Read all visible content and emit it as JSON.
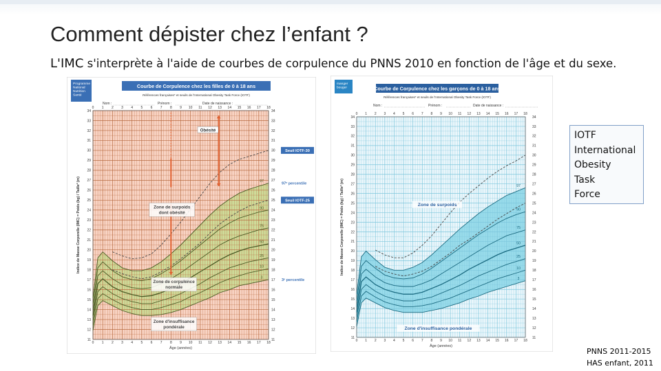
{
  "slide": {
    "title": "Comment dépister chez l’enfant ?",
    "subtitle_lead": "L'IMC",
    "subtitle_rest": " s'interprète à l'aide de courbes de corpulence du PNNS 2010 en fonction de l'âge et du sexe.",
    "iotf_lines": [
      "IOTF",
      "International",
      "Obesity",
      "Task",
      "Force"
    ],
    "sources": [
      "PNNS 2011-2015",
      "HAS enfant, 2011"
    ]
  },
  "charts": {
    "girls": {
      "title": "Courbe de Corpulence chez les filles de 0 à 18 ans",
      "references": "Références françaises* et seuils de l'International Obesity Task Force (IOTF)",
      "logo_lines": [
        "Programme",
        "National",
        "Nutrition",
        "Santé"
      ],
      "name_label": "Nom :",
      "firstname_label": "Prénom :",
      "birthdate_label": "Date de naissance :",
      "y_axis_label": "Indice de Masse Corporelle (IMC) = Poids (kg) / Taille² (m)",
      "x_axis_label": "Âge (années)",
      "annotations": {
        "obesity": "Obésité",
        "iotf30": "Seuil IOTF-30",
        "p97": "97ᵉ percentile",
        "iotf25": "Seuil IOTF-25",
        "overweight": [
          "Zone de surpoids",
          "dont obésité"
        ],
        "normal": [
          "Zone de corpulence",
          "normale"
        ],
        "under": [
          "Zone d'insuffisance",
          "pondérale"
        ],
        "p3": "3ᵉ percentile"
      },
      "percentile_labels": [
        "97",
        "90",
        "75",
        "50",
        "25",
        "10",
        "3"
      ],
      "colors": {
        "background": "#f8d3c3",
        "zone": "#c9dc95",
        "curve": "#4b5b25",
        "accent": "#e06030",
        "label_box": "#3a6fb5"
      }
    },
    "boys": {
      "title": "Courbe de Corpulence chez les garçons de 0 à 18 ans",
      "references": "Références françaises* et seuils de l'International Obesity Task Force (IOTF)",
      "logo_lines": [
        "manger",
        "bouger"
      ],
      "name_label": "Nom :",
      "firstname_label": "Prénom :",
      "birthdate_label": "Date de naissance :",
      "y_axis_label": "Indice de Masse Corporelle (IMC) = Poids (kg) / Taille² (m)",
      "x_axis_label": "Âge (années)",
      "annotations": {
        "overweight": "Zone de surpoids",
        "under": "Zone d'insuffisance pondérale"
      },
      "percentile_labels": [
        "97",
        "90",
        "75",
        "50",
        "25",
        "10",
        "3"
      ],
      "colors": {
        "background": "#eaf6fb",
        "zone": "#8fd8e8",
        "curve": "#1a6a80",
        "accent": "#3a8ec0",
        "label_box": "#2a5f9f"
      }
    },
    "x_ticks": [
      "0",
      "1",
      "2",
      "3",
      "4",
      "5",
      "6",
      "7",
      "8",
      "9",
      "10",
      "11",
      "12",
      "13",
      "14",
      "15",
      "16",
      "17",
      "18"
    ],
    "y_ticks": [
      "34",
      "33",
      "32",
      "31",
      "30",
      "29",
      "28",
      "27",
      "26",
      "25",
      "24",
      "23",
      "22",
      "21",
      "20",
      "19",
      "18",
      "17",
      "16",
      "15",
      "14",
      "13",
      "12",
      "11"
    ]
  },
  "chart_data": [
    {
      "type": "line",
      "title": "Courbe de Corpulence chez les filles de 0 à 18 ans",
      "xlabel": "Âge (années)",
      "ylabel": "Indice de Masse Corporelle (IMC) = Poids (kg) / Taille² (m)",
      "xlim": [
        0,
        18
      ],
      "ylim": [
        11,
        34
      ],
      "x": [
        0,
        0.5,
        1,
        2,
        3,
        4,
        5,
        6,
        7,
        8,
        9,
        10,
        11,
        12,
        13,
        14,
        15,
        16,
        17,
        18
      ],
      "series": [
        {
          "name": "Seuil IOTF-30",
          "values": [
            null,
            null,
            null,
            19.8,
            19.4,
            19.1,
            19.2,
            19.6,
            20.5,
            21.6,
            22.8,
            24.1,
            25.4,
            26.7,
            27.8,
            28.6,
            29.1,
            29.4,
            29.7,
            30
          ]
        },
        {
          "name": "97",
          "values": [
            15.2,
            19.2,
            19.8,
            18.9,
            18.2,
            17.9,
            17.9,
            18.2,
            18.8,
            19.6,
            20.5,
            21.5,
            22.5,
            23.5,
            24.4,
            25.1,
            25.7,
            26.1,
            26.4,
            26.7
          ]
        },
        {
          "name": "Seuil IOTF-25",
          "values": [
            null,
            null,
            null,
            18,
            17.6,
            17.3,
            17.1,
            17.3,
            17.8,
            18.4,
            19.1,
            19.9,
            20.7,
            21.7,
            22.6,
            23.3,
            23.9,
            24.4,
            24.7,
            25
          ]
        },
        {
          "name": "90",
          "values": [
            14.6,
            18.2,
            18.8,
            17.9,
            17.3,
            17,
            16.9,
            17.1,
            17.6,
            18.2,
            18.9,
            19.7,
            20.5,
            21.3,
            22.1,
            22.7,
            23.2,
            23.5,
            23.8,
            24
          ]
        },
        {
          "name": "75",
          "values": [
            14,
            17.4,
            17.9,
            17.1,
            16.5,
            16.2,
            16.1,
            16.2,
            16.6,
            17.1,
            17.7,
            18.4,
            19.1,
            19.8,
            20.5,
            21,
            21.4,
            21.7,
            22,
            22.2
          ]
        },
        {
          "name": "50",
          "values": [
            13.4,
            16.6,
            17.1,
            16.3,
            15.8,
            15.5,
            15.3,
            15.4,
            15.7,
            16.1,
            16.6,
            17.2,
            17.8,
            18.4,
            19,
            19.5,
            19.9,
            20.2,
            20.4,
            20.6
          ]
        },
        {
          "name": "25",
          "values": [
            12.9,
            15.8,
            16.3,
            15.6,
            15.1,
            14.8,
            14.6,
            14.6,
            14.9,
            15.2,
            15.6,
            16.1,
            16.6,
            17.2,
            17.7,
            18.2,
            18.5,
            18.8,
            19,
            19.2
          ]
        },
        {
          "name": "10",
          "values": [
            12.4,
            15.1,
            15.6,
            15,
            14.5,
            14.2,
            14,
            14,
            14.2,
            14.5,
            14.8,
            15.3,
            15.7,
            16.2,
            16.7,
            17.1,
            17.4,
            17.7,
            17.9,
            18.1
          ]
        },
        {
          "name": "3",
          "values": [
            11.9,
            14.4,
            14.9,
            14.4,
            13.9,
            13.6,
            13.4,
            13.4,
            13.5,
            13.7,
            14,
            14.4,
            14.8,
            15.2,
            15.7,
            16,
            16.4,
            16.6,
            16.8,
            17
          ]
        }
      ]
    },
    {
      "type": "line",
      "title": "Courbe de Corpulence chez les garçons de 0 à 18 ans",
      "xlabel": "Âge (années)",
      "ylabel": "Indice de Masse Corporelle (IMC) = Poids (kg) / Taille² (m)",
      "xlim": [
        0,
        18
      ],
      "ylim": [
        11,
        34
      ],
      "x": [
        0,
        0.5,
        1,
        2,
        3,
        4,
        5,
        6,
        7,
        8,
        9,
        10,
        11,
        12,
        13,
        14,
        15,
        16,
        17,
        18
      ],
      "series": [
        {
          "name": "IOTF 30",
          "values": [
            null,
            null,
            null,
            20.1,
            19.6,
            19.3,
            19.3,
            19.8,
            20.6,
            21.6,
            22.8,
            24,
            25.1,
            26,
            26.8,
            27.6,
            28.3,
            28.9,
            29.4,
            30
          ]
        },
        {
          "name": "97",
          "values": [
            15.5,
            19.4,
            20,
            19.1,
            18.3,
            18,
            18,
            18.3,
            18.8,
            19.6,
            20.5,
            21.4,
            22.3,
            23.1,
            23.9,
            24.6,
            25.2,
            25.8,
            26.2,
            26.6
          ]
        },
        {
          "name": "IOTF 25",
          "values": [
            null,
            null,
            null,
            18.4,
            17.9,
            17.6,
            17.4,
            17.6,
            17.9,
            18.4,
            19.1,
            19.8,
            20.6,
            21.2,
            21.9,
            22.6,
            23.3,
            23.9,
            24.5,
            25
          ]
        },
        {
          "name": "90",
          "values": [
            14.8,
            18.4,
            19,
            18.2,
            17.5,
            17.2,
            17.1,
            17.2,
            17.6,
            18.2,
            18.9,
            19.6,
            20.3,
            21,
            21.7,
            22.3,
            22.9,
            23.4,
            23.8,
            24.1
          ]
        },
        {
          "name": "75",
          "values": [
            14.2,
            17.6,
            18.1,
            17.3,
            16.7,
            16.4,
            16.3,
            16.3,
            16.6,
            17,
            17.6,
            18.2,
            18.8,
            19.4,
            20,
            20.6,
            21.1,
            21.6,
            21.9,
            22.2
          ]
        },
        {
          "name": "50",
          "values": [
            13.6,
            16.8,
            17.3,
            16.5,
            16,
            15.7,
            15.5,
            15.5,
            15.7,
            16.1,
            16.5,
            17,
            17.5,
            18.1,
            18.6,
            19.1,
            19.6,
            20,
            20.3,
            20.6
          ]
        },
        {
          "name": "25",
          "values": [
            13.1,
            16,
            16.5,
            15.8,
            15.3,
            15,
            14.8,
            14.8,
            15,
            15.2,
            15.6,
            16,
            16.4,
            16.9,
            17.4,
            17.8,
            18.2,
            18.6,
            18.9,
            19.2
          ]
        },
        {
          "name": "10",
          "values": [
            12.6,
            15.3,
            15.8,
            15.2,
            14.7,
            14.4,
            14.2,
            14.2,
            14.3,
            14.5,
            14.8,
            15.1,
            15.5,
            15.9,
            16.3,
            16.7,
            17.1,
            17.4,
            17.7,
            18
          ]
        },
        {
          "name": "3",
          "values": [
            12.1,
            14.6,
            15.1,
            14.6,
            14.1,
            13.8,
            13.6,
            13.6,
            13.6,
            13.8,
            14,
            14.3,
            14.6,
            15,
            15.3,
            15.7,
            16,
            16.3,
            16.6,
            16.9
          ]
        }
      ]
    }
  ]
}
